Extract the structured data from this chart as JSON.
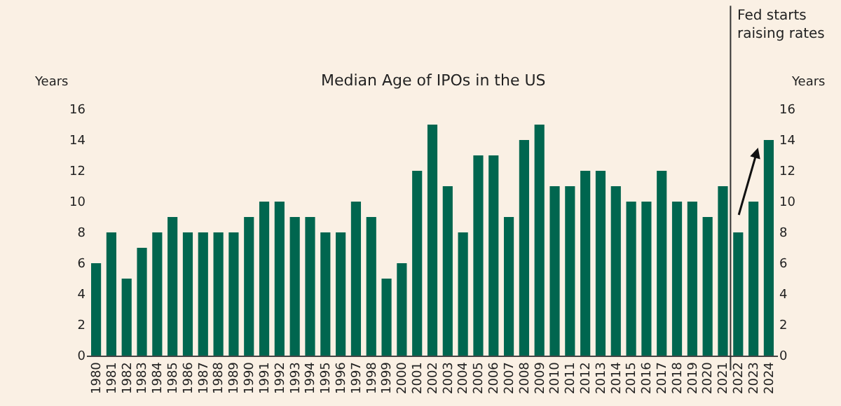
{
  "chart_data": {
    "type": "bar",
    "title": "Median Age of IPOs in the US",
    "ylabel": "Years",
    "y2label": "Years",
    "x": [
      1980,
      1981,
      1982,
      1983,
      1984,
      1985,
      1986,
      1987,
      1988,
      1989,
      1990,
      1991,
      1992,
      1993,
      1994,
      1995,
      1996,
      1997,
      1998,
      1999,
      2000,
      2001,
      2002,
      2003,
      2004,
      2005,
      2006,
      2007,
      2008,
      2009,
      2010,
      2011,
      2012,
      2013,
      2014,
      2015,
      2016,
      2017,
      2018,
      2019,
      2020,
      2021,
      2022,
      2023,
      2024
    ],
    "values": [
      6,
      8,
      5,
      7,
      8,
      9,
      8,
      8,
      8,
      8,
      9,
      10,
      10,
      9,
      9,
      8,
      8,
      10,
      9,
      5,
      6,
      12,
      15,
      11,
      8,
      13,
      13,
      9,
      14,
      15,
      11,
      11,
      12,
      12,
      11,
      10,
      10,
      12,
      10,
      10,
      9,
      11,
      8,
      10,
      14
    ],
    "color": "#00664f",
    "xlim": [
      1979.4,
      2024.6
    ],
    "xticks": [
      1980,
      1981,
      1982,
      1983,
      1984,
      1985,
      1986,
      1987,
      1988,
      1989,
      1990,
      1991,
      1992,
      1993,
      1994,
      1995,
      1996,
      1997,
      1998,
      1999,
      2000,
      2001,
      2002,
      2003,
      2004,
      2005,
      2006,
      2007,
      2008,
      2009,
      2010,
      2011,
      2012,
      2013,
      2014,
      2015,
      2016,
      2017,
      2018,
      2019,
      2020,
      2021,
      2022,
      2023,
      2024
    ],
    "ylim": [
      0,
      16
    ],
    "yticks": [
      0,
      2,
      4,
      6,
      8,
      10,
      12,
      14,
      16
    ],
    "y2lim": [
      0,
      16
    ],
    "y2ticks": [
      0,
      2,
      4,
      6,
      8,
      10,
      12,
      14,
      16
    ],
    "ref_lines": [
      {
        "axis": "x",
        "value": 2021.5,
        "label": "Fed starts\nraising rates",
        "color": "#333333"
      }
    ],
    "grid": false,
    "legend": false
  }
}
